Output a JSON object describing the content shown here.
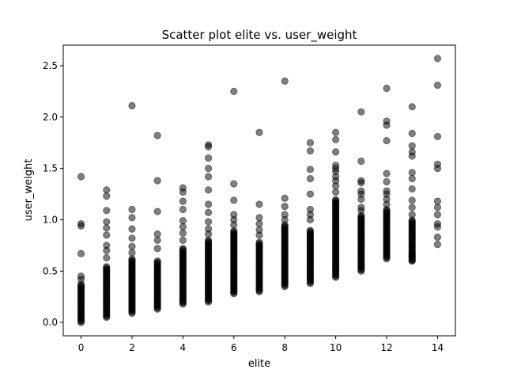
{
  "chart_data": {
    "type": "scatter",
    "title": "Scatter plot elite vs. user_weight",
    "xlabel": "elite",
    "ylabel": "user_weight",
    "xlim": [
      -0.7,
      14.7
    ],
    "ylim": [
      -0.13,
      2.7
    ],
    "xticks": [
      0,
      2,
      4,
      6,
      8,
      10,
      12,
      14
    ],
    "yticks": [
      0.0,
      0.5,
      1.0,
      1.5,
      2.0,
      2.5
    ],
    "xtick_labels": [
      "0",
      "2",
      "4",
      "6",
      "8",
      "10",
      "12",
      "14"
    ],
    "ytick_labels": [
      "0.0",
      "0.5",
      "1.0",
      "1.5",
      "2.0",
      "2.5"
    ],
    "grid": false,
    "marker_color": "#000000",
    "marker_alpha": 0.5,
    "series": [
      {
        "clusters": [
          {
            "x": 0,
            "min": 0.0,
            "max": 0.38
          },
          {
            "x": 1,
            "min": 0.05,
            "max": 0.55
          },
          {
            "x": 2,
            "min": 0.09,
            "max": 0.62
          },
          {
            "x": 3,
            "min": 0.13,
            "max": 0.6
          },
          {
            "x": 4,
            "min": 0.18,
            "max": 0.72
          },
          {
            "x": 5,
            "min": 0.2,
            "max": 0.8
          },
          {
            "x": 6,
            "min": 0.28,
            "max": 0.9
          },
          {
            "x": 7,
            "min": 0.3,
            "max": 0.78
          },
          {
            "x": 8,
            "min": 0.35,
            "max": 0.95
          },
          {
            "x": 9,
            "min": 0.38,
            "max": 0.9
          },
          {
            "x": 10,
            "min": 0.44,
            "max": 1.2
          },
          {
            "x": 11,
            "min": 0.5,
            "max": 1.05
          },
          {
            "x": 12,
            "min": 0.62,
            "max": 1.1
          },
          {
            "x": 13,
            "min": 0.6,
            "max": 1.0
          }
        ],
        "points": [
          {
            "x": 0,
            "y": 1.42
          },
          {
            "x": 0,
            "y": 0.96
          },
          {
            "x": 0,
            "y": 0.94
          },
          {
            "x": 0,
            "y": 0.67
          },
          {
            "x": 0,
            "y": 0.45
          },
          {
            "x": 0,
            "y": 0.42
          },
          {
            "x": 1,
            "y": 1.29
          },
          {
            "x": 1,
            "y": 1.23
          },
          {
            "x": 1,
            "y": 1.09
          },
          {
            "x": 1,
            "y": 0.98
          },
          {
            "x": 1,
            "y": 0.92
          },
          {
            "x": 1,
            "y": 0.85
          },
          {
            "x": 1,
            "y": 0.75
          },
          {
            "x": 1,
            "y": 0.7
          },
          {
            "x": 1,
            "y": 0.63
          },
          {
            "x": 2,
            "y": 2.11
          },
          {
            "x": 2,
            "y": 1.1
          },
          {
            "x": 2,
            "y": 1.02
          },
          {
            "x": 2,
            "y": 0.91
          },
          {
            "x": 2,
            "y": 0.82
          },
          {
            "x": 2,
            "y": 0.74
          },
          {
            "x": 2,
            "y": 0.68
          },
          {
            "x": 3,
            "y": 1.82
          },
          {
            "x": 3,
            "y": 1.38
          },
          {
            "x": 3,
            "y": 1.08
          },
          {
            "x": 3,
            "y": 0.86
          },
          {
            "x": 3,
            "y": 0.8
          },
          {
            "x": 3,
            "y": 0.72
          },
          {
            "x": 4,
            "y": 1.31
          },
          {
            "x": 4,
            "y": 1.27
          },
          {
            "x": 4,
            "y": 1.18
          },
          {
            "x": 4,
            "y": 1.1
          },
          {
            "x": 4,
            "y": 0.99
          },
          {
            "x": 4,
            "y": 0.93
          },
          {
            "x": 4,
            "y": 0.87
          },
          {
            "x": 4,
            "y": 0.8
          },
          {
            "x": 5,
            "y": 1.73
          },
          {
            "x": 5,
            "y": 1.71
          },
          {
            "x": 5,
            "y": 1.6
          },
          {
            "x": 5,
            "y": 1.5
          },
          {
            "x": 5,
            "y": 1.42
          },
          {
            "x": 5,
            "y": 1.29
          },
          {
            "x": 5,
            "y": 1.15
          },
          {
            "x": 5,
            "y": 1.07
          },
          {
            "x": 5,
            "y": 0.98
          },
          {
            "x": 5,
            "y": 0.91
          },
          {
            "x": 5,
            "y": 0.86
          },
          {
            "x": 6,
            "y": 2.25
          },
          {
            "x": 6,
            "y": 1.35
          },
          {
            "x": 6,
            "y": 1.19
          },
          {
            "x": 6,
            "y": 1.05
          },
          {
            "x": 6,
            "y": 1.0
          },
          {
            "x": 6,
            "y": 0.95
          },
          {
            "x": 7,
            "y": 1.85
          },
          {
            "x": 7,
            "y": 1.15
          },
          {
            "x": 7,
            "y": 1.02
          },
          {
            "x": 7,
            "y": 0.96
          },
          {
            "x": 7,
            "y": 0.9
          },
          {
            "x": 7,
            "y": 0.85
          },
          {
            "x": 8,
            "y": 2.35
          },
          {
            "x": 8,
            "y": 1.21
          },
          {
            "x": 8,
            "y": 1.13
          },
          {
            "x": 8,
            "y": 1.05
          },
          {
            "x": 8,
            "y": 1.0
          },
          {
            "x": 9,
            "y": 1.75
          },
          {
            "x": 9,
            "y": 1.67
          },
          {
            "x": 9,
            "y": 1.49
          },
          {
            "x": 9,
            "y": 1.4
          },
          {
            "x": 9,
            "y": 1.25
          },
          {
            "x": 9,
            "y": 1.1
          },
          {
            "x": 9,
            "y": 1.05
          },
          {
            "x": 9,
            "y": 1.0
          },
          {
            "x": 10,
            "y": 1.85
          },
          {
            "x": 10,
            "y": 1.78
          },
          {
            "x": 10,
            "y": 1.66
          },
          {
            "x": 10,
            "y": 1.53
          },
          {
            "x": 10,
            "y": 1.5
          },
          {
            "x": 10,
            "y": 1.47
          },
          {
            "x": 10,
            "y": 1.42
          },
          {
            "x": 10,
            "y": 1.38
          },
          {
            "x": 10,
            "y": 1.33
          },
          {
            "x": 10,
            "y": 1.27
          },
          {
            "x": 11,
            "y": 2.05
          },
          {
            "x": 11,
            "y": 1.57
          },
          {
            "x": 11,
            "y": 1.38
          },
          {
            "x": 11,
            "y": 1.36
          },
          {
            "x": 11,
            "y": 1.28
          },
          {
            "x": 11,
            "y": 1.25
          },
          {
            "x": 11,
            "y": 1.2
          },
          {
            "x": 11,
            "y": 1.12
          },
          {
            "x": 11,
            "y": 1.09
          },
          {
            "x": 12,
            "y": 2.28
          },
          {
            "x": 12,
            "y": 1.96
          },
          {
            "x": 12,
            "y": 1.92
          },
          {
            "x": 12,
            "y": 1.77
          },
          {
            "x": 12,
            "y": 1.45
          },
          {
            "x": 12,
            "y": 1.37
          },
          {
            "x": 12,
            "y": 1.28
          },
          {
            "x": 12,
            "y": 1.25
          },
          {
            "x": 12,
            "y": 1.2
          },
          {
            "x": 12,
            "y": 1.15
          },
          {
            "x": 13,
            "y": 2.1
          },
          {
            "x": 13,
            "y": 1.84
          },
          {
            "x": 13,
            "y": 1.72
          },
          {
            "x": 13,
            "y": 1.66
          },
          {
            "x": 13,
            "y": 1.62
          },
          {
            "x": 13,
            "y": 1.46
          },
          {
            "x": 13,
            "y": 1.4
          },
          {
            "x": 13,
            "y": 1.3
          },
          {
            "x": 13,
            "y": 1.19
          },
          {
            "x": 13,
            "y": 1.12
          },
          {
            "x": 13,
            "y": 1.05
          },
          {
            "x": 13,
            "y": 0.67
          },
          {
            "x": 13,
            "y": 0.64
          },
          {
            "x": 13,
            "y": 0.6
          },
          {
            "x": 14,
            "y": 2.57
          },
          {
            "x": 14,
            "y": 2.31
          },
          {
            "x": 14,
            "y": 1.81
          },
          {
            "x": 14,
            "y": 1.54
          },
          {
            "x": 14,
            "y": 1.5
          },
          {
            "x": 14,
            "y": 1.18
          },
          {
            "x": 14,
            "y": 1.12
          },
          {
            "x": 14,
            "y": 1.05
          },
          {
            "x": 14,
            "y": 0.96
          },
          {
            "x": 14,
            "y": 0.93
          },
          {
            "x": 14,
            "y": 0.83
          },
          {
            "x": 14,
            "y": 0.76
          }
        ]
      }
    ]
  }
}
